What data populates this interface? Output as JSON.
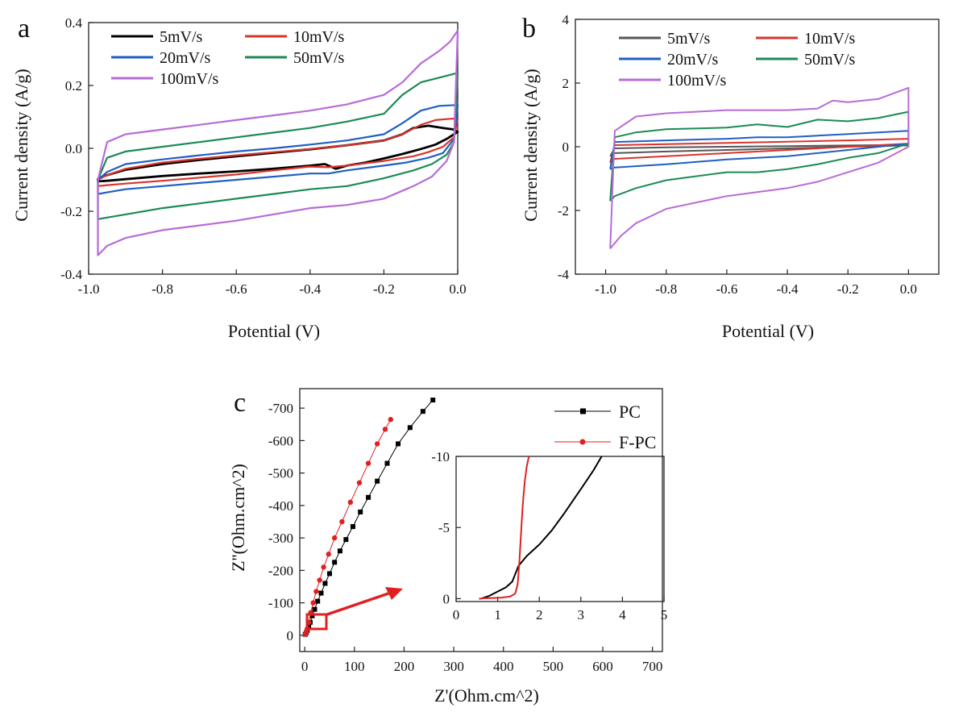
{
  "chart_data": [
    {
      "panel": "a",
      "type": "line",
      "title": "",
      "xlabel": "Potential (V)",
      "ylabel": "Current density (A/g)",
      "xlim": [
        -1.0,
        0.0
      ],
      "ylim": [
        -0.4,
        0.4
      ],
      "xticks": [
        -1.0,
        -0.8,
        -0.6,
        -0.4,
        -0.2,
        0.0
      ],
      "xtick_labels": [
        "-1.0",
        "-0.8",
        "-0.6",
        "-0.4",
        "-0.2",
        "0.0"
      ],
      "yticks": [
        -0.4,
        -0.2,
        0.0,
        0.2,
        0.4
      ],
      "ytick_labels": [
        "-0.4",
        "-0.2",
        "0.0",
        "0.2",
        "0.4"
      ],
      "legend_position": "top-left",
      "series": [
        {
          "name": "5mV/s",
          "color": "#000000",
          "x": [
            -0.975,
            -0.95,
            -0.9,
            -0.8,
            -0.7,
            -0.6,
            -0.5,
            -0.4,
            -0.3,
            -0.2,
            -0.15,
            -0.12,
            -0.08,
            -0.04,
            -0.01,
            0.0,
            -0.01,
            -0.03,
            -0.06,
            -0.1,
            -0.15,
            -0.2,
            -0.25,
            -0.3,
            -0.33,
            -0.36,
            -0.4,
            -0.5,
            -0.6,
            -0.7,
            -0.8,
            -0.9,
            -0.95,
            -0.975,
            -0.975
          ],
          "y": [
            -0.095,
            -0.085,
            -0.068,
            -0.05,
            -0.037,
            -0.025,
            -0.014,
            -0.003,
            0.01,
            0.025,
            0.045,
            0.065,
            0.072,
            0.065,
            0.06,
            0.052,
            0.045,
            0.03,
            0.012,
            -0.002,
            -0.018,
            -0.032,
            -0.045,
            -0.055,
            -0.065,
            -0.05,
            -0.055,
            -0.065,
            -0.073,
            -0.08,
            -0.088,
            -0.098,
            -0.103,
            -0.105,
            -0.095
          ]
        },
        {
          "name": "10mV/s",
          "color": "#d9342b",
          "x": [
            -0.975,
            -0.95,
            -0.9,
            -0.8,
            -0.7,
            -0.6,
            -0.5,
            -0.4,
            -0.3,
            -0.2,
            -0.15,
            -0.1,
            -0.06,
            -0.02,
            0.0,
            -0.01,
            -0.04,
            -0.08,
            -0.12,
            -0.2,
            -0.3,
            -0.35,
            -0.4,
            -0.5,
            -0.6,
            -0.7,
            -0.8,
            -0.9,
            -0.95,
            -0.975,
            -0.975
          ],
          "y": [
            -0.1,
            -0.085,
            -0.065,
            -0.045,
            -0.033,
            -0.022,
            -0.012,
            -0.002,
            0.01,
            0.025,
            0.045,
            0.075,
            0.09,
            0.094,
            0.095,
            0.035,
            0.005,
            -0.012,
            -0.025,
            -0.04,
            -0.055,
            -0.06,
            -0.058,
            -0.07,
            -0.083,
            -0.093,
            -0.103,
            -0.112,
            -0.117,
            -0.12,
            -0.1
          ]
        },
        {
          "name": "20mV/s",
          "color": "#1f5fc4",
          "x": [
            -0.975,
            -0.95,
            -0.9,
            -0.8,
            -0.7,
            -0.6,
            -0.5,
            -0.4,
            -0.3,
            -0.2,
            -0.15,
            -0.1,
            -0.05,
            0.0,
            -0.01,
            -0.04,
            -0.08,
            -0.14,
            -0.2,
            -0.3,
            -0.35,
            -0.4,
            -0.5,
            -0.6,
            -0.7,
            -0.8,
            -0.9,
            -0.95,
            -0.975,
            -0.975
          ],
          "y": [
            -0.1,
            -0.075,
            -0.05,
            -0.035,
            -0.022,
            -0.01,
            0.0,
            0.012,
            0.025,
            0.045,
            0.08,
            0.12,
            0.135,
            0.138,
            0.03,
            -0.015,
            -0.03,
            -0.045,
            -0.055,
            -0.07,
            -0.08,
            -0.08,
            -0.09,
            -0.1,
            -0.11,
            -0.12,
            -0.13,
            -0.14,
            -0.145,
            -0.1
          ]
        },
        {
          "name": "50mV/s",
          "color": "#1b8a55",
          "x": [
            -0.975,
            -0.95,
            -0.9,
            -0.8,
            -0.7,
            -0.6,
            -0.5,
            -0.4,
            -0.3,
            -0.2,
            -0.15,
            -0.1,
            -0.05,
            0.0,
            -0.01,
            -0.03,
            -0.07,
            -0.12,
            -0.2,
            -0.3,
            -0.4,
            -0.5,
            -0.6,
            -0.7,
            -0.8,
            -0.9,
            -0.95,
            -0.975,
            -0.975
          ],
          "y": [
            -0.1,
            -0.03,
            -0.01,
            0.005,
            0.02,
            0.035,
            0.05,
            0.065,
            0.085,
            0.11,
            0.17,
            0.21,
            0.225,
            0.24,
            0.02,
            -0.02,
            -0.05,
            -0.07,
            -0.095,
            -0.12,
            -0.13,
            -0.145,
            -0.16,
            -0.175,
            -0.19,
            -0.21,
            -0.22,
            -0.225,
            -0.1
          ]
        },
        {
          "name": "100mV/s",
          "color": "#b86bd6",
          "x": [
            -0.975,
            -0.95,
            -0.9,
            -0.8,
            -0.7,
            -0.6,
            -0.5,
            -0.4,
            -0.3,
            -0.2,
            -0.15,
            -0.1,
            -0.05,
            -0.02,
            0.0,
            -0.01,
            -0.03,
            -0.07,
            -0.12,
            -0.2,
            -0.3,
            -0.4,
            -0.5,
            -0.6,
            -0.7,
            -0.8,
            -0.9,
            -0.95,
            -0.975,
            -0.975
          ],
          "y": [
            -0.1,
            0.02,
            0.045,
            0.06,
            0.075,
            0.09,
            0.105,
            0.12,
            0.14,
            0.17,
            0.21,
            0.27,
            0.31,
            0.34,
            0.375,
            0.02,
            -0.04,
            -0.09,
            -0.12,
            -0.16,
            -0.18,
            -0.19,
            -0.21,
            -0.23,
            -0.245,
            -0.26,
            -0.285,
            -0.31,
            -0.34,
            -0.1
          ]
        }
      ]
    },
    {
      "panel": "b",
      "type": "line",
      "title": "",
      "xlabel": "Potential (V)",
      "ylabel": "Current density (A/g)",
      "xlim": [
        -1.1,
        0.1
      ],
      "ylim": [
        -4,
        4
      ],
      "xticks": [
        -1.0,
        -0.8,
        -0.6,
        -0.4,
        -0.2,
        0.0
      ],
      "xtick_labels": [
        "-1.0",
        "-0.8",
        "-0.6",
        "-0.4",
        "-0.2",
        "0.0"
      ],
      "yticks": [
        -4,
        -2,
        0,
        2,
        4
      ],
      "ytick_labels": [
        "-4",
        "-2",
        "0",
        "2",
        "4"
      ],
      "legend_position": "top",
      "series": [
        {
          "name": "5mV/s",
          "color": "#555555",
          "x": [
            -0.985,
            -0.97,
            -0.8,
            -0.6,
            -0.4,
            -0.2,
            0.0,
            0.0,
            -0.2,
            -0.4,
            -0.6,
            -0.8,
            -0.97,
            -0.985
          ],
          "y": [
            -0.3,
            -0.05,
            -0.02,
            0.0,
            0.02,
            0.04,
            0.06,
            0.04,
            0.0,
            -0.05,
            -0.1,
            -0.15,
            -0.2,
            -0.3
          ]
        },
        {
          "name": "10mV/s",
          "color": "#d9342b",
          "x": [
            -0.985,
            -0.97,
            -0.8,
            -0.6,
            -0.4,
            -0.2,
            0.0,
            0.0,
            -0.2,
            -0.4,
            -0.6,
            -0.8,
            -0.97,
            -0.985
          ],
          "y": [
            -0.5,
            0.05,
            0.08,
            0.12,
            0.16,
            0.2,
            0.25,
            0.1,
            0.0,
            -0.1,
            -0.2,
            -0.3,
            -0.38,
            -0.5
          ]
        },
        {
          "name": "20mV/s",
          "color": "#1f5fc4",
          "x": [
            -0.985,
            -0.97,
            -0.8,
            -0.6,
            -0.5,
            -0.4,
            -0.3,
            -0.2,
            0.0,
            0.0,
            -0.2,
            -0.4,
            -0.6,
            -0.8,
            -0.97,
            -0.985
          ],
          "y": [
            -0.7,
            0.15,
            0.2,
            0.25,
            0.3,
            0.3,
            0.35,
            0.4,
            0.5,
            0.1,
            -0.1,
            -0.3,
            -0.4,
            -0.55,
            -0.65,
            -0.7
          ]
        },
        {
          "name": "50mV/s",
          "color": "#1b8a55",
          "x": [
            -0.985,
            -0.97,
            -0.9,
            -0.8,
            -0.6,
            -0.5,
            -0.4,
            -0.3,
            -0.2,
            -0.1,
            0.0,
            0.0,
            -0.1,
            -0.2,
            -0.3,
            -0.4,
            -0.5,
            -0.6,
            -0.8,
            -0.9,
            -0.97,
            -0.985
          ],
          "y": [
            -1.7,
            0.3,
            0.45,
            0.55,
            0.6,
            0.7,
            0.62,
            0.85,
            0.8,
            0.9,
            1.1,
            0.1,
            -0.2,
            -0.35,
            -0.55,
            -0.7,
            -0.8,
            -0.8,
            -1.05,
            -1.3,
            -1.55,
            -1.7
          ]
        },
        {
          "name": "100mV/s",
          "color": "#b86bd6",
          "x": [
            -0.985,
            -0.97,
            -0.9,
            -0.8,
            -0.6,
            -0.5,
            -0.4,
            -0.3,
            -0.25,
            -0.2,
            -0.1,
            0.0,
            0.0,
            -0.1,
            -0.2,
            -0.3,
            -0.4,
            -0.6,
            -0.8,
            -0.9,
            -0.95,
            -0.985
          ],
          "y": [
            -3.2,
            0.5,
            0.95,
            1.05,
            1.15,
            1.15,
            1.15,
            1.2,
            1.45,
            1.4,
            1.5,
            1.85,
            0.0,
            -0.5,
            -0.8,
            -1.1,
            -1.3,
            -1.55,
            -1.95,
            -2.4,
            -2.8,
            -3.2
          ]
        }
      ]
    },
    {
      "panel": "c",
      "type": "scatter",
      "title": "",
      "xlabel": "Z'(Ohm.cm^2)",
      "ylabel": "Z''(Ohm.cm^2)",
      "xlim": [
        -10,
        720
      ],
      "ylim": [
        50,
        -760
      ],
      "xticks": [
        0,
        100,
        200,
        300,
        400,
        500,
        600,
        700
      ],
      "xtick_labels": [
        "0",
        "100",
        "200",
        "300",
        "400",
        "500",
        "600",
        "700"
      ],
      "yticks": [
        0,
        -100,
        -200,
        -300,
        -400,
        -500,
        -600,
        -700
      ],
      "ytick_labels": [
        "0",
        "-100",
        "-200",
        "-300",
        "-400",
        "-500",
        "-600",
        "-700"
      ],
      "legend_position": "top-right",
      "series": [
        {
          "name": "PC",
          "color": "#000000",
          "marker": "square",
          "x": [
            1,
            3,
            5,
            8,
            11,
            15,
            20,
            26,
            33,
            41,
            50,
            60,
            71,
            83,
            97,
            112,
            128,
            146,
            166,
            188,
            212,
            238,
            258
          ],
          "y": [
            -3,
            -8,
            -15,
            -25,
            -40,
            -60,
            -80,
            -105,
            -130,
            -160,
            -190,
            -225,
            -260,
            -295,
            -335,
            -380,
            -425,
            -475,
            -530,
            -590,
            -640,
            -690,
            -725
          ]
        },
        {
          "name": "F-PC",
          "color": "#e02020",
          "marker": "circle",
          "x": [
            1,
            3,
            5,
            8,
            12,
            17,
            23,
            30,
            38,
            48,
            60,
            75,
            92,
            110,
            128,
            146,
            162,
            173
          ],
          "y": [
            -3,
            -10,
            -20,
            -40,
            -70,
            -100,
            -135,
            -170,
            -210,
            -250,
            -300,
            -350,
            -410,
            -470,
            -530,
            -590,
            -635,
            -665
          ]
        }
      ],
      "annotation": "red box near origin with arrow pointing to inset",
      "inset": {
        "type": "line",
        "xlim": [
          0,
          5
        ],
        "ylim": [
          0.2,
          -10
        ],
        "xticks": [
          0,
          1,
          2,
          3,
          4,
          5
        ],
        "xtick_labels": [
          "0",
          "1",
          "2",
          "3",
          "4",
          "5"
        ],
        "yticks": [
          0,
          -5,
          -10
        ],
        "ytick_labels": [
          "0",
          "-5",
          "-10"
        ],
        "series": [
          {
            "name": "PC",
            "color": "#000000",
            "x": [
              0.6,
              0.8,
              1.0,
              1.2,
              1.35,
              1.5,
              1.7,
              2.0,
              2.3,
              2.6,
              3.0,
              3.3,
              3.5
            ],
            "y": [
              0.0,
              -0.2,
              -0.5,
              -0.8,
              -1.2,
              -2.3,
              -3.0,
              -3.8,
              -4.8,
              -6.0,
              -7.7,
              -9.0,
              -10.0
            ]
          },
          {
            "name": "F-PC",
            "color": "#e02020",
            "x": [
              0.55,
              0.7,
              0.9,
              1.1,
              1.3,
              1.42,
              1.48,
              1.52,
              1.56,
              1.6,
              1.65,
              1.7,
              1.75
            ],
            "y": [
              0.0,
              -0.03,
              -0.05,
              -0.08,
              -0.15,
              -0.35,
              -1.0,
              -2.5,
              -4.5,
              -6.5,
              -8.2,
              -9.3,
              -10.0
            ]
          }
        ]
      }
    }
  ],
  "panels": {
    "a": {
      "letter": "a"
    },
    "b": {
      "letter": "b"
    },
    "c": {
      "letter": "c"
    }
  }
}
